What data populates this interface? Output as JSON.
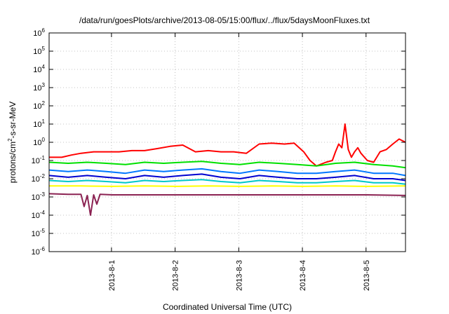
{
  "chart_data": {
    "type": "line",
    "title": "/data/run/goesPlots/archive/2013-08-05/15:00/flux/../flux/5daysMoonFluxes.txt",
    "xlabel": "Coordinated Universal Time (UTC)",
    "ylabel": "protons/cm²-s-sr-MeV",
    "yscale": "log",
    "ylim": [
      1e-06,
      1000000.0
    ],
    "x_ticks": [
      "2013-8-1",
      "2013-8-2",
      "2013-8-3",
      "2013-8-4",
      "2013-8-5"
    ],
    "xlim_days": [
      0,
      5.6
    ],
    "x_tick_days": [
      0.98,
      1.98,
      2.98,
      3.98,
      4.98
    ],
    "grid": true,
    "y_ticks": [
      {
        "base": "10",
        "exp": "-6",
        "value": 1e-06
      },
      {
        "base": "10",
        "exp": "-5",
        "value": 1e-05
      },
      {
        "base": "10",
        "exp": "-4",
        "value": 0.0001
      },
      {
        "base": "10",
        "exp": "-3",
        "value": 0.001
      },
      {
        "base": "10",
        "exp": "-2",
        "value": 0.01
      },
      {
        "base": "10",
        "exp": "-1",
        "value": 0.1
      },
      {
        "base": "10",
        "exp": "0",
        "value": 1
      },
      {
        "base": "10",
        "exp": "1",
        "value": 10
      },
      {
        "base": "10",
        "exp": "2",
        "value": 100
      },
      {
        "base": "10",
        "exp": "3",
        "value": 1000
      },
      {
        "base": "10",
        "exp": "4",
        "value": 10000
      },
      {
        "base": "10",
        "exp": "5",
        "value": 100000
      },
      {
        "base": "10",
        "exp": "6",
        "value": 1000000
      }
    ],
    "series": [
      {
        "color": "#ff0000",
        "x": [
          0.0,
          0.2,
          0.35,
          0.5,
          0.7,
          0.9,
          1.1,
          1.3,
          1.5,
          1.7,
          1.9,
          2.1,
          2.3,
          2.5,
          2.7,
          2.9,
          3.1,
          3.3,
          3.5,
          3.7,
          3.85,
          4.0,
          4.1,
          4.2,
          4.35,
          4.45,
          4.5,
          4.55,
          4.6,
          4.65,
          4.7,
          4.75,
          4.8,
          4.85,
          4.9,
          5.0,
          5.1,
          5.2,
          5.3,
          5.4,
          5.5,
          5.6
        ],
        "values": [
          0.15,
          0.15,
          0.2,
          0.25,
          0.3,
          0.3,
          0.3,
          0.35,
          0.35,
          0.45,
          0.6,
          0.7,
          0.3,
          0.35,
          0.3,
          0.3,
          0.25,
          0.8,
          0.9,
          0.8,
          0.9,
          0.3,
          0.1,
          0.05,
          0.08,
          0.1,
          0.3,
          0.8,
          0.5,
          10,
          0.4,
          0.15,
          0.3,
          0.5,
          0.25,
          0.1,
          0.08,
          0.3,
          0.4,
          0.8,
          1.5,
          1.0
        ]
      },
      {
        "color": "#00e000",
        "x": [
          0.0,
          0.3,
          0.6,
          0.9,
          1.2,
          1.5,
          1.8,
          2.1,
          2.4,
          2.7,
          3.0,
          3.3,
          3.6,
          3.9,
          4.2,
          4.5,
          4.8,
          5.1,
          5.4,
          5.6
        ],
        "values": [
          0.08,
          0.07,
          0.08,
          0.07,
          0.06,
          0.08,
          0.07,
          0.08,
          0.09,
          0.07,
          0.06,
          0.08,
          0.07,
          0.06,
          0.05,
          0.07,
          0.08,
          0.06,
          0.05,
          0.04
        ]
      },
      {
        "color": "#0077ff",
        "x": [
          0.0,
          0.3,
          0.6,
          0.9,
          1.2,
          1.5,
          1.8,
          2.1,
          2.4,
          2.7,
          3.0,
          3.3,
          3.6,
          3.9,
          4.2,
          4.5,
          4.8,
          5.1,
          5.4,
          5.6
        ],
        "values": [
          0.03,
          0.025,
          0.03,
          0.025,
          0.02,
          0.03,
          0.025,
          0.03,
          0.035,
          0.025,
          0.02,
          0.03,
          0.025,
          0.02,
          0.02,
          0.025,
          0.03,
          0.02,
          0.02,
          0.015
        ]
      },
      {
        "color": "#0000d0",
        "x": [
          0.0,
          0.3,
          0.6,
          0.9,
          1.2,
          1.5,
          1.8,
          2.1,
          2.4,
          2.7,
          3.0,
          3.3,
          3.6,
          3.9,
          4.2,
          4.5,
          4.8,
          5.1,
          5.4,
          5.6
        ],
        "values": [
          0.015,
          0.012,
          0.015,
          0.012,
          0.01,
          0.015,
          0.012,
          0.015,
          0.018,
          0.012,
          0.01,
          0.015,
          0.012,
          0.01,
          0.01,
          0.012,
          0.015,
          0.01,
          0.01,
          0.008
        ]
      },
      {
        "color": "#00c8c8",
        "x": [
          0.0,
          0.3,
          0.6,
          0.9,
          1.2,
          1.5,
          1.8,
          2.1,
          2.4,
          2.7,
          3.0,
          3.3,
          3.6,
          3.9,
          4.2,
          4.5,
          4.8,
          5.1,
          5.4,
          5.6
        ],
        "values": [
          0.008,
          0.007,
          0.008,
          0.007,
          0.006,
          0.008,
          0.007,
          0.008,
          0.009,
          0.007,
          0.006,
          0.008,
          0.007,
          0.006,
          0.006,
          0.007,
          0.008,
          0.006,
          0.006,
          0.005
        ]
      },
      {
        "color": "#ffff00",
        "x": [
          0.0,
          0.5,
          1.0,
          1.5,
          2.0,
          2.5,
          3.0,
          3.5,
          4.0,
          4.5,
          5.0,
          5.6
        ],
        "values": [
          0.004,
          0.004,
          0.0038,
          0.004,
          0.0038,
          0.004,
          0.0038,
          0.004,
          0.0038,
          0.004,
          0.0038,
          0.004
        ]
      },
      {
        "color": "#8b2252",
        "x": [
          0.0,
          0.3,
          0.5,
          0.55,
          0.6,
          0.65,
          0.7,
          0.75,
          0.8,
          1.0,
          1.5,
          2.0,
          2.5,
          3.0,
          3.5,
          4.0,
          4.5,
          5.0,
          5.6
        ],
        "values": [
          0.0015,
          0.0014,
          0.0014,
          0.0003,
          0.0012,
          0.0001,
          0.0013,
          0.0004,
          0.0014,
          0.0013,
          0.0013,
          0.0013,
          0.0013,
          0.0013,
          0.0013,
          0.0013,
          0.0013,
          0.0013,
          0.0012
        ]
      }
    ]
  }
}
